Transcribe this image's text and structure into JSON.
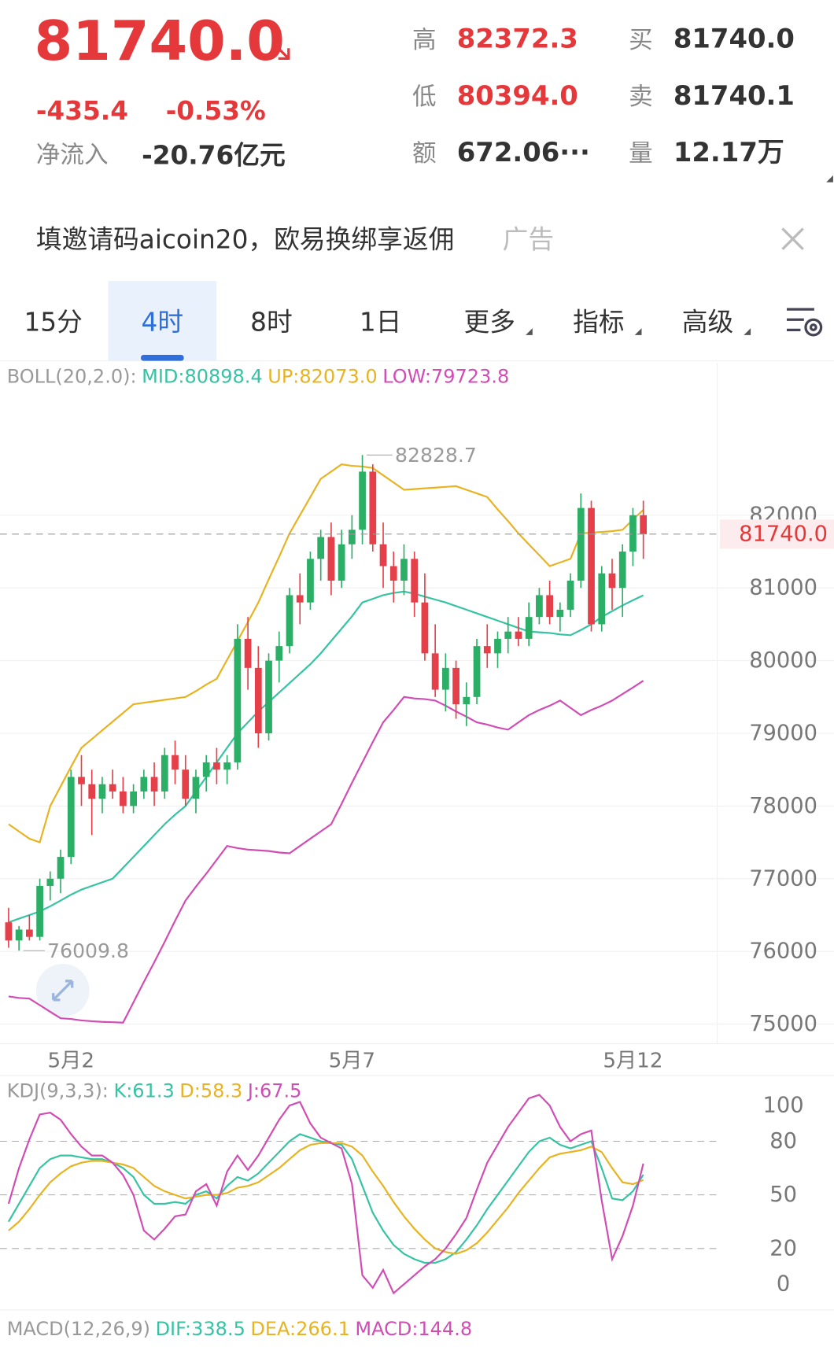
{
  "header": {
    "price": "81740.0",
    "change": "-435.4",
    "change_pct": "-0.53%",
    "inflow_label": "净流入",
    "inflow": "-20.76亿元",
    "stats": [
      {
        "label": "高",
        "value": "82372.3",
        "color": "#e5383b"
      },
      {
        "label": "低",
        "value": "80394.0",
        "color": "#e5383b"
      },
      {
        "label": "额",
        "value": "672.06···",
        "color": "#333333"
      },
      {
        "label": "买",
        "value": "81740.0",
        "color": "#333333"
      },
      {
        "label": "卖",
        "value": "81740.1",
        "color": "#333333"
      },
      {
        "label": "量",
        "value": "12.17万",
        "color": "#333333"
      }
    ]
  },
  "ad": {
    "text": "填邀请码aicoin20，欧易换绑享返佣",
    "tag": "广告"
  },
  "tabs": [
    {
      "label": "15分",
      "dropdown": false
    },
    {
      "label": "4时",
      "dropdown": false
    },
    {
      "label": "8时",
      "dropdown": false
    },
    {
      "label": "1日",
      "dropdown": false
    },
    {
      "label": "更多",
      "dropdown": true
    },
    {
      "label": "指标",
      "dropdown": true
    },
    {
      "label": "高级",
      "dropdown": true
    }
  ],
  "active_tab": 1,
  "chart_data": [
    {
      "type": "candlestick",
      "title": "BOLL(20,2.0):",
      "title_color": "#999999",
      "up_color": "#2bae66",
      "down_color": "#e5404a",
      "categories": [
        null,
        null,
        null,
        null,
        null,
        null,
        "5月2",
        null,
        null,
        null,
        null,
        null,
        null,
        null,
        null,
        null,
        null,
        null,
        null,
        null,
        null,
        null,
        null,
        null,
        null,
        null,
        null,
        null,
        null,
        null,
        null,
        null,
        null,
        "5月7",
        null,
        null,
        null,
        null,
        null,
        null,
        null,
        null,
        null,
        null,
        null,
        null,
        null,
        null,
        null,
        null,
        null,
        null,
        null,
        null,
        null,
        null,
        null,
        null,
        null,
        null,
        "5月12",
        null
      ],
      "open": [
        76400,
        76150,
        76300,
        76200,
        76900,
        77000,
        77300,
        78400,
        78300,
        78100,
        78300,
        78200,
        78000,
        78200,
        78400,
        78200,
        78700,
        78500,
        78100,
        78400,
        78600,
        78500,
        78600,
        80300,
        79900,
        79000,
        80000,
        80200,
        80900,
        80800,
        81400,
        81700,
        81100,
        81600,
        81800,
        82600,
        81600,
        81300,
        81100,
        81400,
        80800,
        80100,
        79600,
        79900,
        79400,
        79500,
        80200,
        80100,
        80300,
        80400,
        80300,
        80600,
        80900,
        80600,
        80700,
        81100,
        82100,
        80500,
        81200,
        81000,
        81500,
        82000
      ],
      "high": [
        76600,
        76350,
        76500,
        77000,
        77100,
        77400,
        78500,
        78700,
        78500,
        78400,
        78500,
        78400,
        78300,
        78500,
        78600,
        78800,
        78900,
        78700,
        78500,
        78700,
        78800,
        78700,
        80500,
        80600,
        80200,
        80100,
        80400,
        81000,
        81200,
        81500,
        81800,
        81900,
        81800,
        82000,
        82828.7,
        82700,
        81900,
        81500,
        81600,
        81500,
        81200,
        80500,
        80100,
        80000,
        79700,
        80300,
        80500,
        80400,
        80600,
        80600,
        80800,
        81000,
        81100,
        80800,
        81200,
        82300,
        82200,
        81300,
        81400,
        81600,
        82100,
        82200
      ],
      "low": [
        76050,
        76009.8,
        76150,
        76150,
        76700,
        76800,
        77200,
        78000,
        77600,
        77900,
        78100,
        77900,
        77900,
        78100,
        78000,
        78100,
        78300,
        78000,
        77900,
        78200,
        78300,
        78300,
        78500,
        79600,
        78800,
        78900,
        79700,
        80100,
        80500,
        80700,
        81100,
        80900,
        81000,
        81400,
        81600,
        81500,
        81000,
        80800,
        80900,
        80600,
        80000,
        79500,
        79300,
        79200,
        79100,
        79400,
        79900,
        79900,
        80100,
        80200,
        80200,
        80500,
        80500,
        80400,
        80600,
        81000,
        80400,
        80400,
        80700,
        80600,
        81300,
        81400
      ],
      "close": [
        76150,
        76300,
        76200,
        76900,
        77000,
        77300,
        78400,
        78300,
        78100,
        78300,
        78200,
        78000,
        78200,
        78400,
        78200,
        78700,
        78500,
        78100,
        78400,
        78600,
        78500,
        78600,
        80300,
        79900,
        79000,
        80000,
        80200,
        80900,
        80800,
        81400,
        81700,
        81100,
        81600,
        81800,
        82600,
        81600,
        81300,
        81100,
        81400,
        80800,
        80100,
        79600,
        79900,
        79400,
        79500,
        80200,
        80100,
        80300,
        80400,
        80300,
        80600,
        80900,
        80600,
        80700,
        81100,
        82100,
        80500,
        81200,
        81000,
        81500,
        82000,
        81740.0
      ],
      "series": [
        {
          "name": "MID:80898.4",
          "color": "#35c3a4",
          "values": [
            76400,
            76450,
            76500,
            76550,
            76620,
            76700,
            76780,
            76850,
            76900,
            76950,
            77000,
            77150,
            77300,
            77450,
            77600,
            77750,
            77880,
            78000,
            78200,
            78400,
            78600,
            78800,
            79000,
            79150,
            79300,
            79430,
            79560,
            79690,
            79820,
            79950,
            80100,
            80270,
            80440,
            80610,
            80800,
            80850,
            80900,
            80930,
            80950,
            80920,
            80880,
            80840,
            80800,
            80750,
            80700,
            80650,
            80600,
            80550,
            80500,
            80450,
            80400,
            80390,
            80380,
            80360,
            80350,
            80420,
            80500,
            80600,
            80680,
            80760,
            80830,
            80898.4
          ]
        },
        {
          "name": "UP:82073.0",
          "color": "#e8b321",
          "values": [
            77750,
            77650,
            77550,
            77500,
            78000,
            78270,
            78540,
            78800,
            78920,
            79040,
            79160,
            79280,
            79400,
            79420,
            79440,
            79460,
            79480,
            79500,
            79580,
            79670,
            79750,
            80010,
            80270,
            80530,
            80800,
            81120,
            81430,
            81750,
            82000,
            82250,
            82500,
            82600,
            82700,
            82680,
            82670,
            82650,
            82550,
            82450,
            82350,
            82360,
            82370,
            82380,
            82390,
            82400,
            82350,
            82300,
            82250,
            82080,
            81920,
            81750,
            81600,
            81450,
            81300,
            81350,
            81400,
            81750,
            81760,
            81770,
            81780,
            81800,
            81940,
            82073.0
          ]
        },
        {
          "name": "LOW:79723.8",
          "color": "#d14cb4",
          "values": [
            75380,
            75360,
            75350,
            75260,
            75170,
            75080,
            75070,
            75050,
            75040,
            75030,
            75025,
            75020,
            75300,
            75580,
            75850,
            76130,
            76420,
            76700,
            76890,
            77070,
            77260,
            77450,
            77420,
            77400,
            77390,
            77380,
            77360,
            77350,
            77450,
            77550,
            77650,
            77750,
            78030,
            78320,
            78600,
            78880,
            79150,
            79320,
            79500,
            79480,
            79470,
            79450,
            79380,
            79300,
            79230,
            79150,
            79120,
            79080,
            79050,
            79150,
            79250,
            79320,
            79380,
            79450,
            79350,
            79250,
            79320,
            79380,
            79450,
            79540,
            79630,
            79723.8
          ]
        }
      ],
      "high_label": "82828.7",
      "low_label": "76009.8",
      "last_price": {
        "value": 81740.0,
        "label": "81740.0"
      },
      "ylim": [
        74730,
        84100
      ],
      "yticks": [
        75000,
        76000,
        77000,
        78000,
        79000,
        80000,
        81000,
        82000
      ],
      "grid": true
    },
    {
      "type": "line",
      "title": "KDJ(9,3,3):",
      "title_color": "#999999",
      "series": [
        {
          "name": "K:61.3",
          "color": "#35c3a4",
          "values": [
            35,
            45,
            55,
            65,
            70,
            72,
            72,
            71,
            70,
            70,
            68,
            65,
            60,
            50,
            45,
            45,
            46,
            45,
            50,
            52,
            48,
            55,
            60,
            58,
            62,
            68,
            74,
            80,
            84,
            82,
            80,
            79,
            78,
            70,
            55,
            40,
            30,
            22,
            17,
            14,
            12,
            12,
            14,
            18,
            25,
            33,
            42,
            50,
            58,
            66,
            74,
            80,
            82,
            78,
            76,
            78,
            80,
            65,
            48,
            47,
            52,
            61.3
          ]
        },
        {
          "name": "D:58.3",
          "color": "#e8b321",
          "values": [
            30,
            35,
            42,
            50,
            57,
            62,
            66,
            68,
            69,
            69,
            68,
            67,
            65,
            60,
            55,
            52,
            50,
            48,
            49,
            50,
            50,
            51,
            54,
            55,
            57,
            61,
            65,
            70,
            75,
            78,
            79,
            79,
            79,
            77,
            72,
            63,
            55,
            46,
            38,
            31,
            25,
            20,
            18,
            17,
            19,
            23,
            29,
            36,
            43,
            51,
            58,
            65,
            71,
            73,
            74,
            75,
            77,
            74,
            65,
            57,
            56,
            58.3
          ]
        },
        {
          "name": "J:67.5",
          "color": "#d14cb4",
          "values": [
            45,
            65,
            81,
            95,
            96,
            92,
            84,
            77,
            72,
            72,
            68,
            61,
            50,
            30,
            25,
            31,
            38,
            39,
            52,
            56,
            44,
            63,
            72,
            64,
            72,
            82,
            92,
            100,
            102,
            90,
            82,
            79,
            76,
            56,
            5,
            -2,
            8,
            -5,
            0,
            5,
            10,
            14,
            20,
            28,
            37,
            53,
            68,
            78,
            88,
            96,
            104,
            106,
            100,
            88,
            80,
            84,
            86,
            47,
            14,
            27,
            44,
            67.5
          ]
        }
      ],
      "ylim": [
        -14.4,
        116.8
      ],
      "yticks": [
        0,
        20,
        50,
        80,
        100
      ],
      "grid": true
    }
  ],
  "macd": {
    "title": "MACD(12,26,9)",
    "title_color": "#999999",
    "items": [
      {
        "text": "DIF:338.5",
        "color": "#35c3a4"
      },
      {
        "text": "DEA:266.1",
        "color": "#e8b321"
      },
      {
        "text": "MACD:144.8",
        "color": "#d14cb4"
      }
    ]
  }
}
